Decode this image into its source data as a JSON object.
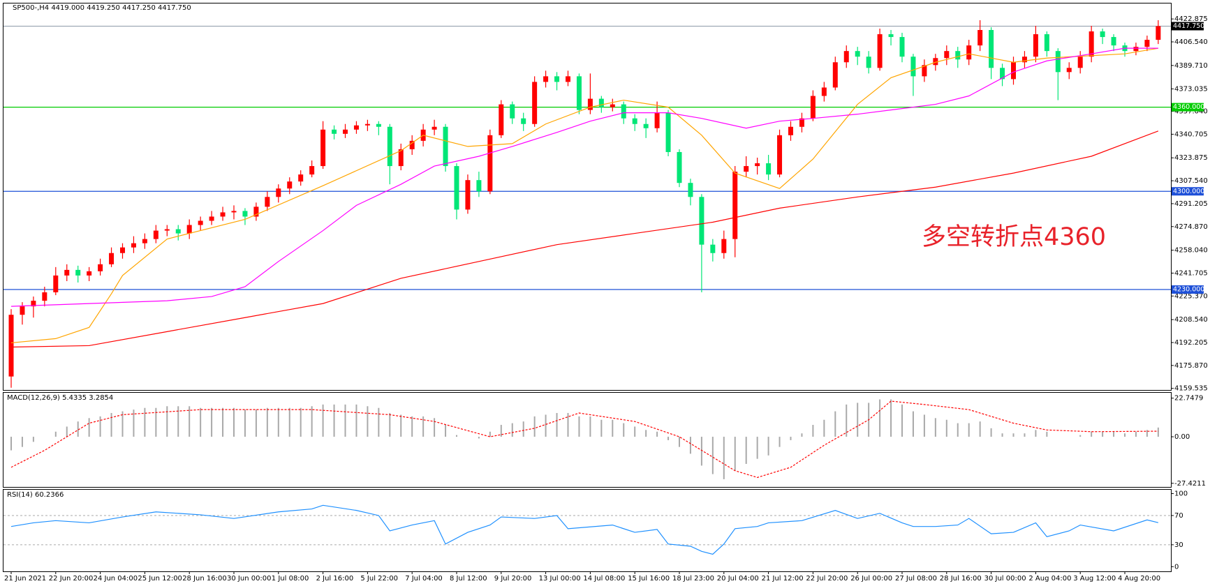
{
  "chart_data": [
    {
      "type": "candlestick",
      "title": "SP500-,H4  4419.000 4419.250 4417.250 4417.750",
      "categories": [
        "21 Jun 2021",
        null,
        null,
        null,
        "22 Jun 20:00",
        null,
        null,
        null,
        "24 Jun 04:00",
        null,
        null,
        null,
        "25 Jun 12:00",
        null,
        null,
        null,
        "28 Jun 16:00",
        null,
        null,
        null,
        "30 Jun 00:00",
        null,
        null,
        null,
        "1 Jul 08:00",
        null,
        null,
        null,
        "2 Jul 16:00",
        null,
        null,
        null,
        "5 Jul 22:00",
        null,
        null,
        null,
        "7 Jul 04:00",
        null,
        null,
        null,
        "8 Jul 12:00",
        null,
        null,
        null,
        "9 Jul 20:00",
        null,
        null,
        null,
        "13 Jul 00:00",
        null,
        null,
        null,
        "14 Jul 08:00",
        null,
        null,
        null,
        "15 Jul 16:00",
        null,
        null,
        null,
        "18 Jul 23:00",
        null,
        null,
        null,
        "20 Jul 04:00",
        null,
        null,
        null,
        "21 Jul 12:00",
        null,
        null,
        null,
        "22 Jul 20:00",
        null,
        null,
        null,
        "26 Jul 00:00",
        null,
        null,
        null,
        "27 Jul 08:00",
        null,
        null,
        null,
        "28 Jul 16:00",
        null,
        null,
        null,
        "30 Jul 00:00",
        null,
        null,
        null,
        "2 Aug 04:00",
        null,
        null,
        null,
        "3 Aug 12:00",
        null,
        null,
        null,
        "4 Aug 20:00",
        null,
        null,
        null
      ],
      "open": [
        4168,
        4212,
        4218,
        4222,
        4228,
        4240,
        4244,
        4240,
        4243,
        4248,
        4256,
        4260,
        4263,
        4266,
        4272,
        4273,
        4270,
        4276,
        4279,
        4282,
        4285,
        4286,
        4282,
        4289,
        4296,
        4302,
        4307,
        4312,
        4318,
        4344,
        4341,
        4344,
        4347,
        4348,
        4346,
        4318,
        4330,
        4336,
        4344,
        4346,
        4318,
        4287,
        4308,
        4300,
        4340,
        4362,
        4352,
        4348,
        4378,
        4382,
        4378,
        4382,
        4358,
        4366,
        4360,
        4362,
        4352,
        4348,
        4345,
        4356,
        4328,
        4306,
        4296,
        4262,
        4256,
        4266,
        4314,
        4318,
        4320,
        4312,
        4340,
        4346,
        4352,
        4368,
        4374,
        4392,
        4400,
        4396,
        4388,
        4412,
        4410,
        4396,
        4382,
        4390,
        4395,
        4400,
        4394,
        4404,
        4415,
        4388,
        4380,
        4392,
        4396,
        4412,
        4400,
        4385,
        4388,
        4396,
        4414,
        4410,
        4404,
        4400,
        4403,
        4408
      ],
      "high": [
        4216,
        4221,
        4225,
        4232,
        4246,
        4248,
        4247,
        4246,
        4252,
        4260,
        4263,
        4268,
        4270,
        4276,
        4276,
        4276,
        4280,
        4282,
        4286,
        4289,
        4290,
        4288,
        4292,
        4300,
        4305,
        4310,
        4315,
        4322,
        4350,
        4347,
        4348,
        4350,
        4351,
        4350,
        4348,
        4334,
        4340,
        4348,
        4351,
        4348,
        4320,
        4312,
        4314,
        4344,
        4365,
        4364,
        4356,
        4382,
        4386,
        4385,
        4386,
        4384,
        4384,
        4368,
        4366,
        4364,
        4355,
        4352,
        4364,
        4358,
        4330,
        4309,
        4298,
        4266,
        4272,
        4318,
        4325,
        4324,
        4326,
        4344,
        4350,
        4356,
        4372,
        4378,
        4396,
        4404,
        4403,
        4400,
        4416,
        4415,
        4413,
        4398,
        4394,
        4398,
        4404,
        4403,
        4408,
        4422,
        4417,
        4391,
        4396,
        4400,
        4418,
        4414,
        4402,
        4392,
        4400,
        4418,
        4416,
        4412,
        4406,
        4406,
        4411,
        4422
      ],
      "low": [
        4160,
        4205,
        4210,
        4218,
        4226,
        4236,
        4235,
        4236,
        4240,
        4246,
        4252,
        4256,
        4259,
        4263,
        4268,
        4265,
        4266,
        4272,
        4276,
        4279,
        4280,
        4276,
        4279,
        4286,
        4292,
        4298,
        4304,
        4310,
        4316,
        4337,
        4338,
        4341,
        4343,
        4340,
        4305,
        4315,
        4326,
        4332,
        4340,
        4314,
        4280,
        4284,
        4296,
        4298,
        4338,
        4348,
        4343,
        4346,
        4374,
        4372,
        4375,
        4355,
        4355,
        4356,
        4357,
        4348,
        4343,
        4338,
        4342,
        4325,
        4303,
        4290,
        4228,
        4250,
        4252,
        4253,
        4310,
        4312,
        4308,
        4310,
        4336,
        4342,
        4350,
        4364,
        4372,
        4388,
        4390,
        4384,
        4386,
        4404,
        4392,
        4368,
        4378,
        4386,
        4390,
        4388,
        4390,
        4400,
        4380,
        4375,
        4376,
        4388,
        4392,
        4396,
        4365,
        4380,
        4384,
        4392,
        4405,
        4400,
        4396,
        4397,
        4400,
        4405
      ],
      "close": [
        4212,
        4218,
        4222,
        4228,
        4240,
        4244,
        4240,
        4243,
        4248,
        4256,
        4260,
        4263,
        4266,
        4272,
        4273,
        4270,
        4276,
        4279,
        4282,
        4285,
        4286,
        4282,
        4289,
        4296,
        4302,
        4307,
        4312,
        4318,
        4344,
        4341,
        4344,
        4347,
        4348,
        4346,
        4318,
        4330,
        4336,
        4344,
        4346,
        4318,
        4287,
        4308,
        4300,
        4340,
        4362,
        4352,
        4348,
        4378,
        4382,
        4378,
        4382,
        4358,
        4366,
        4360,
        4362,
        4352,
        4348,
        4345,
        4356,
        4328,
        4306,
        4296,
        4262,
        4256,
        4266,
        4314,
        4318,
        4320,
        4312,
        4340,
        4346,
        4352,
        4368,
        4374,
        4392,
        4400,
        4396,
        4388,
        4412,
        4410,
        4396,
        4382,
        4390,
        4395,
        4400,
        4394,
        4404,
        4415,
        4388,
        4380,
        4392,
        4396,
        4412,
        4400,
        4385,
        4388,
        4396,
        4414,
        4410,
        4404,
        4400,
        4403,
        4408,
        4417.75
      ],
      "up_color": "#ff0000",
      "down_color": "#00e676",
      "series": [
        {
          "color": "#ffa500",
          "x": [
            0,
            4,
            7,
            9,
            10,
            14,
            21,
            28,
            35,
            37,
            41,
            45,
            48,
            52,
            55,
            59,
            62,
            65,
            69,
            72,
            76,
            79,
            83,
            86,
            90,
            93,
            100,
            103
          ],
          "values": [
            4192,
            4195,
            4203,
            4227,
            4240,
            4266,
            4280,
            4304,
            4329,
            4340,
            4332,
            4334,
            4348,
            4360,
            4365,
            4360,
            4340,
            4313,
            4302,
            4323,
            4362,
            4381,
            4392,
            4398,
            4392,
            4395,
            4398,
            4402
          ]
        },
        {
          "color": "#ff00ff",
          "x": [
            0,
            7,
            14,
            18,
            21,
            24,
            28,
            31,
            35,
            38,
            42,
            45,
            49,
            52,
            55,
            59,
            62,
            66,
            69,
            72,
            76,
            79,
            83,
            86,
            90,
            93,
            97,
            100,
            103
          ],
          "values": [
            4218,
            4220,
            4222,
            4225,
            4232,
            4250,
            4272,
            4290,
            4305,
            4318,
            4325,
            4332,
            4342,
            4350,
            4356,
            4356,
            4352,
            4345,
            4350,
            4352,
            4355,
            4358,
            4362,
            4368,
            4385,
            4393,
            4398,
            4402,
            4402
          ]
        },
        {
          "color": "#ff0000",
          "x": [
            0,
            7,
            14,
            21,
            28,
            35,
            42,
            49,
            56,
            63,
            69,
            76,
            83,
            90,
            97,
            103
          ],
          "values": [
            4189,
            4190,
            4200,
            4210,
            4220,
            4238,
            4250,
            4262,
            4270,
            4278,
            4288,
            4296,
            4303,
            4313,
            4325,
            4343
          ]
        }
      ],
      "ylim": [
        4158.4,
        4433.9
      ],
      "yticks": [
        4422.875,
        {
          "value": 4406.54,
          "label": "4406.540"
        },
        {
          "value": 4389.71,
          "label": "4389.710"
        },
        4373.035,
        {
          "value": 4357.04,
          "label": "4357.040"
        },
        4340.705,
        4323.875,
        {
          "value": 4307.54,
          "label": "4307.540"
        },
        4291.205,
        {
          "value": 4274.87,
          "label": "4274.870"
        },
        {
          "value": 4258.04,
          "label": "4258.040"
        },
        4241.705,
        {
          "value": 4225.37,
          "label": "4225.370"
        },
        {
          "value": 4208.54,
          "label": "4208.540"
        },
        4192.205,
        {
          "value": 4175.87,
          "label": "4175.870"
        },
        4159.535
      ],
      "grid": false,
      "levels": [
        {
          "value": 4360,
          "label": "4360.000",
          "color": "#00cc00"
        },
        {
          "value": 4300,
          "label": "4300.000",
          "color": "#1e50d8"
        },
        {
          "value": 4230,
          "label": "4230.000",
          "color": "#1e50d8"
        }
      ],
      "current_price": {
        "value": 4417.75,
        "label": "4417.750",
        "color": "#8c9aa8"
      },
      "annotation": {
        "text": "多空转折点4360",
        "color": "#e8222a"
      }
    },
    {
      "type": "macd",
      "title": "MACD(12,26,9) 5.4335 3.2854",
      "values": [
        -8,
        -6,
        -3,
        0,
        3,
        6,
        9,
        11,
        12,
        14,
        15,
        16,
        17,
        17,
        18,
        18,
        18,
        17,
        17,
        17,
        17,
        16,
        16,
        17,
        17,
        17,
        17,
        18,
        19,
        19,
        19,
        19,
        18,
        17,
        14,
        13,
        12,
        12,
        11,
        7,
        1,
        0,
        -1,
        3,
        7,
        8,
        9,
        12,
        13,
        14,
        14,
        12,
        12,
        10,
        10,
        8,
        6,
        4,
        3,
        -2,
        -6,
        -10,
        -17,
        -22,
        -25,
        -20,
        -16,
        -13,
        -11,
        -6,
        -2,
        2,
        7,
        10,
        15,
        19,
        20,
        20,
        22,
        22,
        19,
        15,
        13,
        11,
        10,
        8,
        8,
        9,
        5,
        2,
        2,
        2,
        4,
        3,
        0,
        0,
        1,
        3,
        3,
        3,
        2,
        3,
        4,
        5.4335
      ],
      "color": "#a9a9a9",
      "signal": {
        "color": "#ff0000",
        "x": [
          0,
          3,
          7,
          10,
          17,
          27,
          34,
          38,
          43,
          47,
          51,
          56,
          60,
          62,
          65,
          67,
          70,
          73,
          77,
          79,
          82,
          86,
          90,
          93,
          97,
          103
        ],
        "values": [
          -18,
          -8,
          8,
          13,
          16,
          16,
          13,
          9,
          0,
          5,
          14,
          9,
          0,
          -8,
          -20,
          -24,
          -18,
          -5,
          10,
          21,
          19,
          16,
          8,
          4,
          3,
          3.2854
        ]
      },
      "ylim": [
        -29.57,
        25.93
      ],
      "yticks": [
        22.7479,
        {
          "value": 0,
          "label": "0.00"
        },
        -27.4211
      ]
    },
    {
      "type": "line",
      "title": "RSI(14) 60.2366",
      "x": [
        0,
        2,
        4,
        7,
        10,
        13,
        17,
        20,
        24,
        27,
        28,
        31,
        33,
        34,
        36,
        38,
        39,
        41,
        43,
        44,
        47,
        49,
        50,
        54,
        56,
        58,
        59,
        61,
        62,
        63,
        64,
        65,
        67,
        68,
        71,
        74,
        76,
        78,
        80,
        81,
        83,
        85,
        86,
        88,
        90,
        92,
        93,
        95,
        96,
        99,
        102,
        103
      ],
      "values": [
        55,
        60,
        63,
        60,
        68,
        75,
        71,
        66,
        75,
        79,
        84,
        77,
        70,
        49,
        57,
        63,
        31,
        47,
        57,
        68,
        66,
        70,
        52,
        57,
        47,
        51,
        31,
        28,
        21,
        17,
        31,
        52,
        55,
        60,
        63,
        77,
        66,
        73,
        60,
        55,
        55,
        57,
        66,
        45,
        47,
        60,
        41,
        49,
        57,
        49,
        64,
        60.2366
      ],
      "color": "#1e90ff",
      "ylim": [
        -6.4,
        105.3
      ],
      "yticks": [
        100,
        70,
        30,
        0
      ],
      "reference_lines": [
        70,
        30
      ]
    }
  ]
}
